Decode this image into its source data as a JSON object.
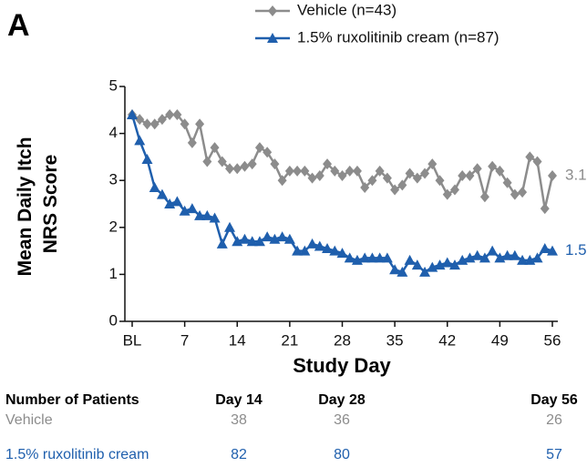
{
  "chart_data": {
    "type": "line",
    "panel": "A",
    "ylabel": [
      "Mean Daily Itch",
      "NRS Score"
    ],
    "xlabel": "Study Day",
    "x": [
      0,
      1,
      2,
      3,
      4,
      5,
      6,
      7,
      8,
      9,
      10,
      11,
      12,
      13,
      14,
      15,
      16,
      17,
      18,
      19,
      20,
      21,
      22,
      23,
      24,
      25,
      26,
      27,
      28,
      29,
      30,
      31,
      32,
      33,
      34,
      35,
      36,
      37,
      38,
      39,
      40,
      41,
      42,
      43,
      44,
      45,
      46,
      47,
      48,
      49,
      50,
      51,
      52,
      53,
      54,
      55,
      56
    ],
    "series": [
      {
        "name": "Vehicle (n=43)",
        "color": "#8c8c8c",
        "marker": "diamond",
        "values": [
          4.4,
          4.3,
          4.2,
          4.2,
          4.3,
          4.4,
          4.4,
          4.2,
          3.8,
          4.2,
          3.4,
          3.7,
          3.4,
          3.25,
          3.25,
          3.3,
          3.35,
          3.7,
          3.6,
          3.35,
          3.0,
          3.2,
          3.2,
          3.2,
          3.05,
          3.1,
          3.35,
          3.2,
          3.1,
          3.2,
          3.2,
          2.85,
          3.0,
          3.2,
          3.05,
          2.8,
          2.9,
          3.15,
          3.05,
          3.15,
          3.35,
          3.0,
          2.7,
          2.8,
          3.1,
          3.1,
          3.25,
          2.65,
          3.3,
          3.2,
          2.95,
          2.7,
          2.75,
          3.5,
          3.4,
          2.4,
          3.1
        ]
      },
      {
        "name": "1.5% ruxolitinib cream (n=87)",
        "color": "#1f5fad",
        "marker": "triangle",
        "values": [
          4.4,
          3.85,
          3.45,
          2.85,
          2.7,
          2.5,
          2.55,
          2.35,
          2.4,
          2.25,
          2.25,
          2.2,
          1.65,
          2.0,
          1.7,
          1.75,
          1.7,
          1.7,
          1.8,
          1.75,
          1.8,
          1.75,
          1.5,
          1.5,
          1.65,
          1.6,
          1.55,
          1.5,
          1.45,
          1.35,
          1.3,
          1.35,
          1.35,
          1.35,
          1.35,
          1.1,
          1.05,
          1.3,
          1.2,
          1.05,
          1.15,
          1.2,
          1.25,
          1.2,
          1.3,
          1.35,
          1.4,
          1.35,
          1.5,
          1.35,
          1.4,
          1.4,
          1.3,
          1.3,
          1.35,
          1.55,
          1.5
        ]
      }
    ],
    "xlim": [
      0,
      56
    ],
    "xticks": [
      {
        "value": 0,
        "label": "BL"
      },
      7,
      14,
      21,
      28,
      35,
      42,
      49,
      56
    ],
    "ylim": [
      0,
      5
    ],
    "yticks": [
      0,
      1,
      2,
      3,
      4,
      5
    ]
  },
  "table": {
    "header": [
      "Number of Patients",
      "Day 14",
      "Day 28",
      "Day 56"
    ],
    "rows": [
      [
        "Vehicle",
        "38",
        "36",
        "26"
      ],
      [
        "1.5% ruxolitinib cream",
        "82",
        "80",
        "57"
      ]
    ]
  }
}
